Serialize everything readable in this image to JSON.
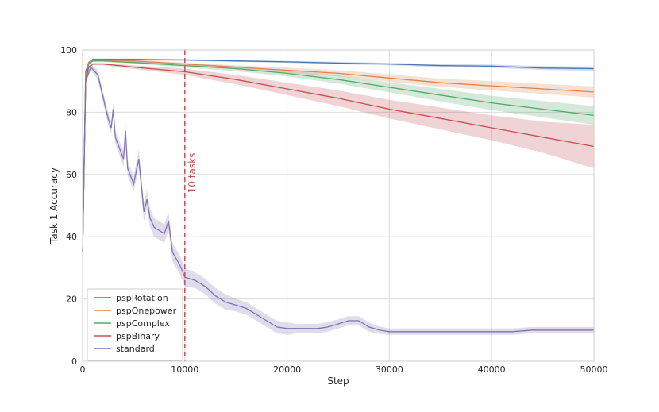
{
  "chart_data": {
    "type": "line",
    "title": "",
    "xlabel": "Step",
    "ylabel": "Task 1 Accuracy",
    "xlim": [
      0,
      50000
    ],
    "ylim": [
      0,
      100
    ],
    "xticks": [
      0,
      10000,
      20000,
      30000,
      40000,
      50000
    ],
    "yticks": [
      0,
      20,
      40,
      60,
      80,
      100
    ],
    "grid": true,
    "legend_position": "lower-left",
    "annotations": [
      {
        "type": "vline",
        "x": 10000,
        "label": "10 tasks",
        "color": "#c44e52",
        "style": "dashed"
      }
    ],
    "series": [
      {
        "name": "pspRotation",
        "color": "#4c72b0",
        "x": [
          0,
          300,
          600,
          1000,
          2000,
          5000,
          10000,
          15000,
          20000,
          25000,
          30000,
          35000,
          40000,
          45000,
          50000
        ],
        "y": [
          35,
          93,
          96,
          97,
          97,
          97,
          96.8,
          96.5,
          96.2,
          95.8,
          95.5,
          95,
          94.8,
          94.2,
          94
        ],
        "band": [
          0.2,
          0.3,
          0.3,
          0.3,
          0.3,
          0.3,
          0.3,
          0.3,
          0.3,
          0.4,
          0.4,
          0.5,
          0.5,
          0.6,
          0.7
        ]
      },
      {
        "name": "pspOnepower",
        "color": "#dd8452",
        "x": [
          0,
          300,
          600,
          1000,
          2000,
          5000,
          10000,
          15000,
          20000,
          25000,
          30000,
          35000,
          40000,
          45000,
          50000
        ],
        "y": [
          35,
          92,
          96,
          96.8,
          96.8,
          96.5,
          95.5,
          94.5,
          93.5,
          92.5,
          91,
          89.5,
          88.5,
          87.5,
          86.5
        ],
        "band": [
          0.2,
          0.3,
          0.3,
          0.3,
          0.3,
          0.4,
          0.5,
          0.6,
          0.8,
          1,
          1.2,
          1.3,
          1.5,
          1.6,
          1.8
        ]
      },
      {
        "name": "pspComplex",
        "color": "#55a868",
        "x": [
          0,
          300,
          600,
          1000,
          2000,
          5000,
          10000,
          15000,
          20000,
          25000,
          30000,
          35000,
          40000,
          45000,
          50000
        ],
        "y": [
          35,
          91,
          95.5,
          96.5,
          96.5,
          96,
          95,
          94,
          92.5,
          90.5,
          88,
          85.5,
          83,
          81,
          79
        ],
        "band": [
          0.2,
          0.3,
          0.3,
          0.3,
          0.3,
          0.4,
          0.6,
          0.8,
          1,
          1.3,
          1.6,
          2,
          2.3,
          2.6,
          3
        ]
      },
      {
        "name": "pspBinary",
        "color": "#c44e52",
        "x": [
          0,
          300,
          600,
          1000,
          2000,
          5000,
          10000,
          15000,
          20000,
          25000,
          30000,
          35000,
          40000,
          45000,
          50000
        ],
        "y": [
          35,
          90,
          94.5,
          95.5,
          95.5,
          94.5,
          93,
          90.5,
          87.5,
          84.5,
          81,
          78,
          75,
          72,
          69
        ],
        "band": [
          0.3,
          0.4,
          0.4,
          0.4,
          0.4,
          0.6,
          1,
          1.5,
          2,
          2.5,
          3,
          3.5,
          4,
          5,
          7
        ]
      },
      {
        "name": "standard",
        "color": "#8172b3",
        "x": [
          0,
          300,
          800,
          1500,
          2500,
          2800,
          3000,
          3200,
          4000,
          4200,
          4400,
          5000,
          5500,
          6000,
          6300,
          6600,
          7000,
          8000,
          8400,
          8800,
          9500,
          10000,
          11000,
          12000,
          13000,
          14000,
          15000,
          16000,
          17000,
          18000,
          19000,
          20000,
          21000,
          22000,
          23000,
          24000,
          25000,
          26000,
          27000,
          28000,
          29000,
          30000,
          32000,
          34000,
          36000,
          38000,
          40000,
          42000,
          44000,
          46000,
          48000,
          50000
        ],
        "y": [
          35,
          90,
          94.5,
          92,
          78,
          75,
          81,
          72,
          65,
          74,
          62,
          57,
          65,
          48,
          52,
          46,
          43,
          41,
          45,
          35,
          31,
          27,
          26,
          24,
          21,
          19,
          18,
          17,
          15,
          13,
          11,
          10.5,
          10.5,
          10.5,
          10.5,
          11,
          12,
          13,
          13,
          11,
          10,
          9.5,
          9.5,
          9.5,
          9.5,
          9.5,
          9.5,
          9.5,
          10,
          10,
          10,
          10
        ],
        "band": [
          0.5,
          1,
          1,
          1.5,
          2,
          2,
          2,
          2,
          2.5,
          2.5,
          2.5,
          2.5,
          3,
          3,
          3,
          3,
          3,
          3,
          3,
          3,
          3,
          3,
          2.5,
          2.5,
          2.5,
          2.5,
          2,
          2,
          2,
          2,
          2,
          2,
          1.5,
          1.5,
          1.5,
          1.5,
          1.5,
          1.5,
          1.5,
          1.5,
          1.2,
          1,
          1,
          1,
          1,
          1,
          1,
          1,
          1,
          1,
          1,
          1
        ]
      }
    ]
  }
}
